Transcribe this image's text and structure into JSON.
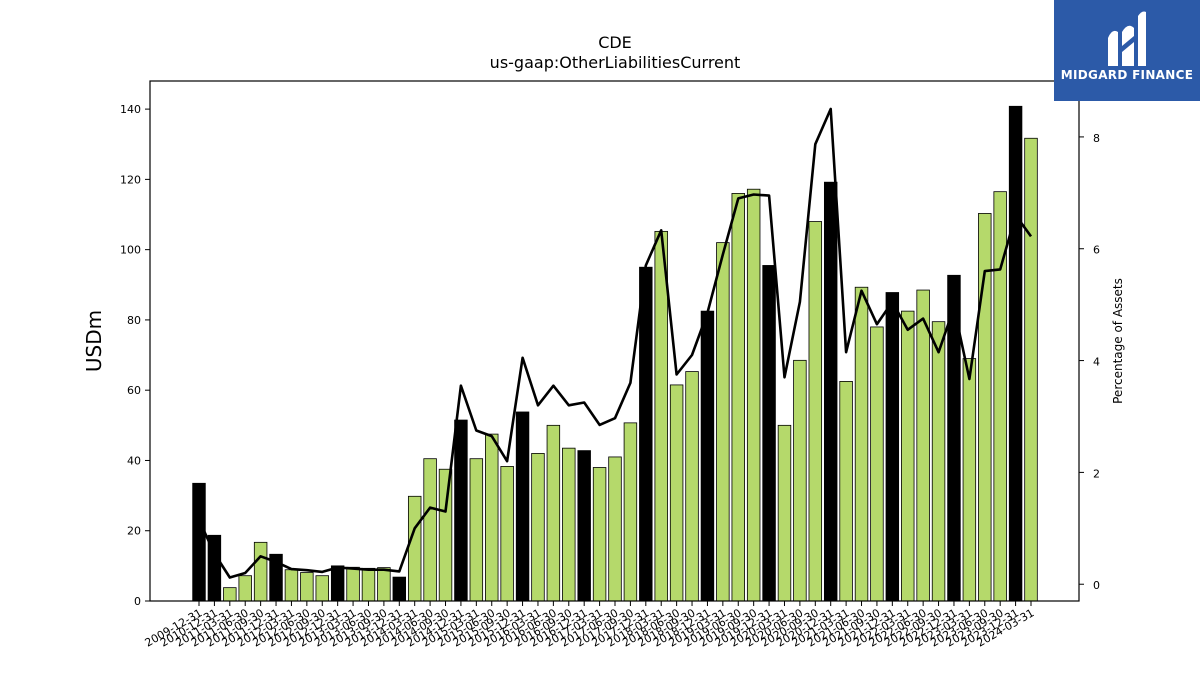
{
  "chart_data": {
    "type": "bar",
    "title": "CDE",
    "subtitle": "us-gaap:OtherLiabilitiesCurrent",
    "ylabel": "USDm",
    "y2label": "Percentage of Assets",
    "ylim": [
      0,
      148
    ],
    "y2lim": [
      -0.3,
      9.0
    ],
    "yticks": [
      0,
      20,
      40,
      60,
      80,
      100,
      120,
      140
    ],
    "y2ticks": [
      0,
      2,
      4,
      6,
      8
    ],
    "categories": [
      "2009-12-31",
      "2010-12-31",
      "2011-03-31",
      "2011-06-30",
      "2011-09-30",
      "2011-12-31",
      "2012-03-31",
      "2012-06-30",
      "2012-09-30",
      "2012-12-31",
      "2013-03-31",
      "2013-06-30",
      "2013-09-30",
      "2013-12-31",
      "2014-03-31",
      "2014-06-30",
      "2014-09-30",
      "2014-12-31",
      "2015-03-31",
      "2015-06-30",
      "2015-09-30",
      "2015-12-31",
      "2016-03-31",
      "2016-06-30",
      "2016-09-30",
      "2016-12-31",
      "2017-03-31",
      "2017-06-30",
      "2017-09-30",
      "2017-12-31",
      "2018-03-31",
      "2018-06-30",
      "2018-09-30",
      "2018-12-31",
      "2019-03-31",
      "2019-06-30",
      "2019-09-30",
      "2019-12-31",
      "2020-03-31",
      "2020-06-30",
      "2020-09-30",
      "2020-12-31",
      "2021-03-31",
      "2021-06-30",
      "2021-09-30",
      "2021-12-31",
      "2022-03-31",
      "2022-06-30",
      "2022-09-30",
      "2022-12-31",
      "2023-03-31",
      "2023-06-30",
      "2023-09-30",
      "2023-12-31",
      "2024-03-31"
    ],
    "visible_tick_labels": [
      "2009-12-31",
      "2010-12-31",
      "2011-03-31",
      "2011-06-30",
      "2011-09-30",
      "2011-12-31",
      "2012-03-31",
      "2012-06-30",
      "2012-09-30",
      "2012-12-31",
      "2013-03-31",
      "2013-06-30",
      "2013-09-30",
      "2013-12-31",
      "2014-03-31",
      "2014-06-30",
      "2014-09-30",
      "2014-12-31",
      "2015-03-31",
      "2015-06-30",
      "2015-09-30",
      "2015-12-31",
      "2016-03-31",
      "2016-06-30",
      "2016-09-30",
      "2016-12-31",
      "2017-03-31",
      "2017-06-30",
      "2017-09-30",
      "2017-12-31",
      "2018-03-31",
      "2018-06-30",
      "2018-09-30",
      "2018-12-31",
      "2019-03-31",
      "2019-06-30",
      "2019-09-30",
      "2019-12-31",
      "2020-03-31",
      "2020-06-30",
      "2020-09-30",
      "2020-12-31",
      "2021-03-31",
      "2021-06-30",
      "2021-09-30",
      "2021-12-31",
      "2022-03-31",
      "2022-06-30",
      "2022-09-30",
      "2022-12-31",
      "2023-03-31",
      "2023-06-30",
      "2023-09-30",
      "2023-12-31",
      "2024-03-31"
    ],
    "series": [
      {
        "type": "bar",
        "values": [
          33.5,
          18.7,
          3.8,
          7.2,
          16.7,
          13.3,
          8.9,
          8.1,
          7.2,
          10.0,
          9.6,
          9.3,
          9.5,
          6.8,
          29.8,
          40.5,
          37.5,
          51.5,
          40.5,
          47.5,
          38.3,
          53.8,
          42.0,
          50.0,
          43.5,
          42.8,
          38.0,
          41.0,
          50.7,
          95.0,
          105.2,
          61.5,
          65.3,
          82.5,
          102.0,
          116.0,
          117.2,
          95.5,
          50.0,
          68.5,
          108.0,
          119.2,
          62.5,
          89.3,
          78.0,
          87.8,
          82.5,
          88.5,
          79.5,
          92.7,
          69.0,
          110.3,
          116.5,
          140.8,
          131.7
        ],
        "highlight": [
          true,
          true,
          false,
          false,
          false,
          true,
          false,
          false,
          false,
          true,
          false,
          false,
          false,
          true,
          false,
          false,
          false,
          true,
          false,
          false,
          false,
          true,
          false,
          false,
          false,
          true,
          false,
          false,
          false,
          true,
          false,
          false,
          false,
          true,
          false,
          false,
          false,
          true,
          false,
          false,
          false,
          true,
          false,
          false,
          false,
          true,
          false,
          false,
          false,
          true,
          false,
          false,
          false,
          true,
          false
        ]
      },
      {
        "type": "line",
        "axis": "right",
        "values": [
          1.15,
          0.55,
          0.12,
          0.2,
          0.5,
          0.4,
          0.27,
          0.25,
          0.22,
          0.3,
          0.28,
          0.26,
          0.26,
          0.23,
          1.0,
          1.37,
          1.3,
          3.55,
          2.75,
          2.65,
          2.2,
          4.05,
          3.2,
          3.55,
          3.2,
          3.25,
          2.85,
          2.97,
          3.6,
          5.7,
          6.33,
          3.75,
          4.1,
          4.85,
          5.9,
          6.9,
          6.97,
          6.95,
          3.7,
          5.05,
          7.87,
          8.5,
          4.15,
          5.25,
          4.65,
          5.05,
          4.55,
          4.75,
          4.15,
          4.95,
          3.67,
          5.6,
          5.63,
          6.6,
          6.22
        ]
      }
    ],
    "colors": {
      "bar": "#b5d96b",
      "bar_highlight": "#000000",
      "line": "#000000"
    }
  },
  "logo": {
    "text": "MIDGARD FINANCE",
    "icon": "midgard-logo-icon"
  }
}
